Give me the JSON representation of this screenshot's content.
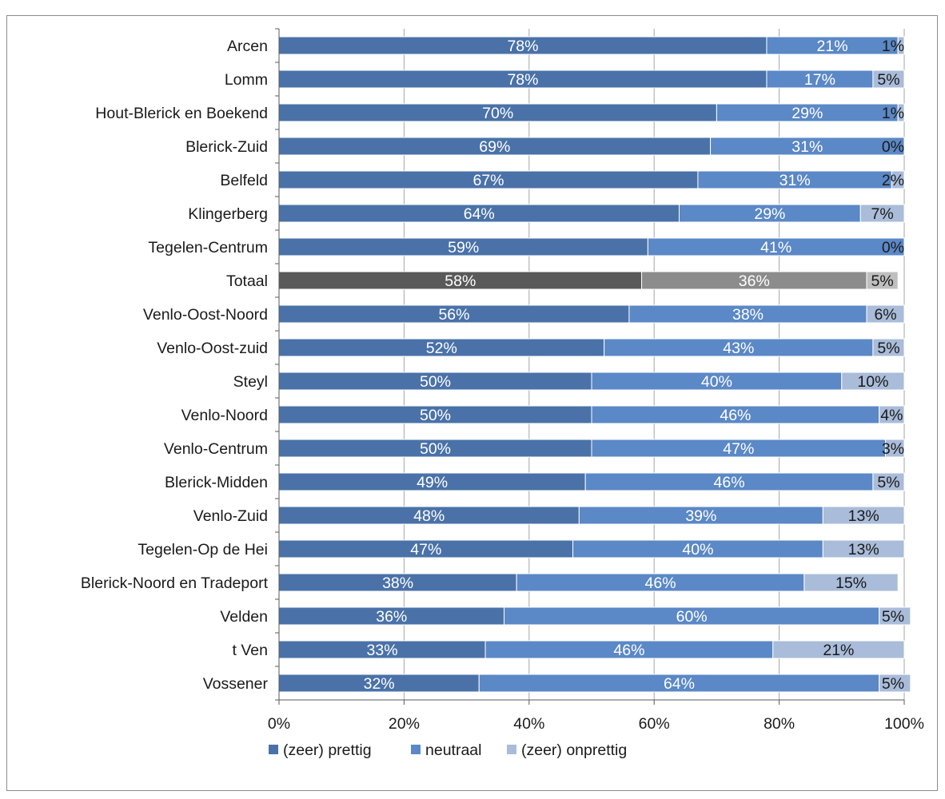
{
  "title": "",
  "colors": {
    "zeer_prettig": "#4a72a8",
    "neutraal": "#5b88c6",
    "zeer_onprettig": "#a9bcd9",
    "totaal_zeer_prettig": "#595959",
    "totaal_neutraal": "#8c8c8c",
    "totaal_zeer_onprettig": "#bfbfbf",
    "grid": "#a6a6a6",
    "axis": "#595959"
  },
  "chart_data": {
    "type": "bar",
    "orientation": "horizontal",
    "stacked": true,
    "percent_stacked": true,
    "title": "",
    "xlabel": "",
    "ylabel": "",
    "xlim": [
      0,
      100
    ],
    "x_ticks": [
      "0%",
      "20%",
      "40%",
      "60%",
      "80%",
      "100%"
    ],
    "grid": "vertical gridlines",
    "legend_position": "bottom",
    "highlighted_category": "Totaal",
    "categories": [
      "Arcen",
      "Lomm",
      "Hout-Blerick en Boekend",
      "Blerick-Zuid",
      "Belfeld",
      "Klingerberg",
      "Tegelen-Centrum",
      "Totaal",
      "Venlo-Oost-Noord",
      "Venlo-Oost-zuid",
      "Steyl",
      "Venlo-Noord",
      "Venlo-Centrum",
      "Blerick-Midden",
      "Venlo-Zuid",
      "Tegelen-Op de Hei",
      "Blerick-Noord en Tradeport",
      "Velden",
      "t Ven",
      "Vossener"
    ],
    "series": [
      {
        "name": "(zeer) prettig",
        "values": [
          78,
          78,
          70,
          69,
          67,
          64,
          59,
          58,
          56,
          52,
          50,
          50,
          50,
          49,
          48,
          47,
          38,
          36,
          33,
          32
        ],
        "labels": [
          "78%",
          "78%",
          "70%",
          "69%",
          "67%",
          "64%",
          "59%",
          "58%",
          "56%",
          "52%",
          "50%",
          "50%",
          "50%",
          "49%",
          "48%",
          "47%",
          "38%",
          "36%",
          "33%",
          "32%"
        ]
      },
      {
        "name": "neutraal",
        "values": [
          21,
          17,
          29,
          31,
          31,
          29,
          41,
          36,
          38,
          43,
          40,
          46,
          47,
          46,
          39,
          40,
          46,
          60,
          46,
          64
        ],
        "labels": [
          "21%",
          "17%",
          "29%",
          "31%",
          "31%",
          "29%",
          "41%",
          "36%",
          "38%",
          "43%",
          "40%",
          "46%",
          "47%",
          "46%",
          "39%",
          "40%",
          "46%",
          "60%",
          "46%",
          "64%"
        ]
      },
      {
        "name": "(zeer) onprettig",
        "values": [
          1,
          5,
          1,
          0,
          2,
          7,
          0,
          5,
          6,
          5,
          10,
          4,
          3,
          5,
          13,
          13,
          15,
          5,
          21,
          5
        ],
        "labels": [
          "1%",
          "5%",
          "1%",
          "0%",
          "2%",
          "7%",
          "0%",
          "5%",
          "6%",
          "5%",
          "10%",
          "4%",
          "3%",
          "5%",
          "13%",
          "13%",
          "15%",
          "5%",
          "21%",
          "5%"
        ]
      }
    ]
  }
}
